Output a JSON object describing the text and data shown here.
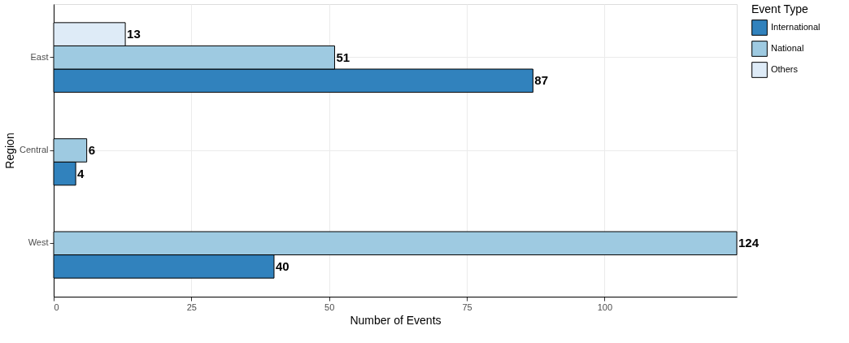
{
  "chart_data": {
    "type": "bar",
    "orientation": "horizontal",
    "categories": [
      "East",
      "Central",
      "West"
    ],
    "series": [
      {
        "name": "International",
        "color": "#3182bd",
        "values": [
          87,
          4,
          40
        ]
      },
      {
        "name": "National",
        "color": "#9ecae1",
        "values": [
          51,
          6,
          124
        ]
      },
      {
        "name": "Others",
        "color": "#deebf7",
        "values": [
          13,
          null,
          null
        ]
      }
    ],
    "xlim": [
      0,
      124
    ],
    "xticks": [
      0,
      25,
      50,
      75,
      100
    ],
    "xlabel": "Number of Events",
    "ylabel": "Region",
    "legend_title": "Event Type",
    "legend": "right",
    "grid": true,
    "data_labels": true
  }
}
